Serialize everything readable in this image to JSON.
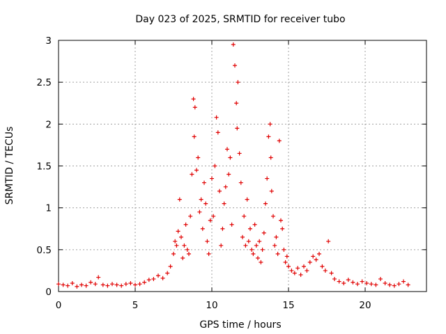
{
  "chart_data": {
    "type": "scatter",
    "title": "Day 023 of 2025, SRMTID for receiver tubo",
    "xlabel": "GPS time / hours",
    "ylabel": "SRMTID / TECUs",
    "xlim": [
      0,
      24
    ],
    "ylim": [
      0,
      3
    ],
    "xticks": [
      0,
      5,
      10,
      15,
      20
    ],
    "yticks": [
      0,
      0.5,
      1,
      1.5,
      2,
      2.5,
      3
    ],
    "xtick_labels": [
      "0",
      "5",
      "10",
      "15",
      "20"
    ],
    "ytick_labels": [
      "0",
      "0.5",
      "1",
      "1.5",
      "2",
      "2.5",
      "3"
    ],
    "grid": true,
    "marker": "+",
    "color": "#e00000",
    "series": [
      {
        "name": "SRMTID",
        "x": [
          0.0,
          0.3,
          0.6,
          0.9,
          1.2,
          1.5,
          1.8,
          2.1,
          2.4,
          2.6,
          2.9,
          3.2,
          3.5,
          3.8,
          4.1,
          4.4,
          4.7,
          5.0,
          5.3,
          5.6,
          5.9,
          6.2,
          6.5,
          6.8,
          7.1,
          7.3,
          7.5,
          7.6,
          7.7,
          7.8,
          7.9,
          8.0,
          8.1,
          8.2,
          8.3,
          8.4,
          8.5,
          8.6,
          8.7,
          8.8,
          8.85,
          8.9,
          9.0,
          9.1,
          9.2,
          9.3,
          9.4,
          9.5,
          9.6,
          9.7,
          9.8,
          9.9,
          10.0,
          10.1,
          10.2,
          10.3,
          10.4,
          10.5,
          10.6,
          10.7,
          10.8,
          10.9,
          11.0,
          11.1,
          11.2,
          11.3,
          11.4,
          11.5,
          11.6,
          11.65,
          11.7,
          11.8,
          11.9,
          12.0,
          12.1,
          12.2,
          12.3,
          12.4,
          12.5,
          12.6,
          12.7,
          12.8,
          12.9,
          13.0,
          13.1,
          13.2,
          13.3,
          13.4,
          13.5,
          13.6,
          13.7,
          13.8,
          13.85,
          13.9,
          14.0,
          14.1,
          14.2,
          14.3,
          14.4,
          14.5,
          14.6,
          14.7,
          14.8,
          14.9,
          15.0,
          15.2,
          15.4,
          15.6,
          15.8,
          16.0,
          16.2,
          16.4,
          16.6,
          16.8,
          17.0,
          17.2,
          17.4,
          17.6,
          17.8,
          18.0,
          18.3,
          18.6,
          18.9,
          19.2,
          19.5,
          19.8,
          20.1,
          20.4,
          20.7,
          21.0,
          21.3,
          21.6,
          21.9,
          22.2,
          22.5,
          22.8
        ],
        "y": [
          0.09,
          0.08,
          0.07,
          0.1,
          0.06,
          0.08,
          0.07,
          0.11,
          0.09,
          0.17,
          0.08,
          0.07,
          0.09,
          0.08,
          0.07,
          0.09,
          0.1,
          0.08,
          0.09,
          0.11,
          0.14,
          0.15,
          0.19,
          0.16,
          0.22,
          0.3,
          0.45,
          0.6,
          0.55,
          0.72,
          1.1,
          0.65,
          0.4,
          0.55,
          0.8,
          0.5,
          0.45,
          0.9,
          1.4,
          2.3,
          1.85,
          2.2,
          1.45,
          1.6,
          0.95,
          1.1,
          0.75,
          1.3,
          1.05,
          0.6,
          0.45,
          0.85,
          1.35,
          0.9,
          1.5,
          2.08,
          1.9,
          1.2,
          0.55,
          0.75,
          1.05,
          1.25,
          1.7,
          1.4,
          1.6,
          0.8,
          2.95,
          2.7,
          2.25,
          1.95,
          2.5,
          1.65,
          1.3,
          0.65,
          0.9,
          0.55,
          1.1,
          0.6,
          0.75,
          0.5,
          0.45,
          0.8,
          0.55,
          0.4,
          0.6,
          0.35,
          0.5,
          0.7,
          1.05,
          1.35,
          1.85,
          2.0,
          1.6,
          1.2,
          0.9,
          0.55,
          0.65,
          0.45,
          1.8,
          0.85,
          0.75,
          0.5,
          0.35,
          0.42,
          0.3,
          0.25,
          0.22,
          0.28,
          0.2,
          0.3,
          0.25,
          0.35,
          0.42,
          0.38,
          0.45,
          0.3,
          0.25,
          0.6,
          0.22,
          0.15,
          0.12,
          0.1,
          0.14,
          0.11,
          0.09,
          0.12,
          0.1,
          0.09,
          0.08,
          0.15,
          0.1,
          0.08,
          0.07,
          0.09,
          0.12,
          0.08
        ]
      }
    ]
  }
}
